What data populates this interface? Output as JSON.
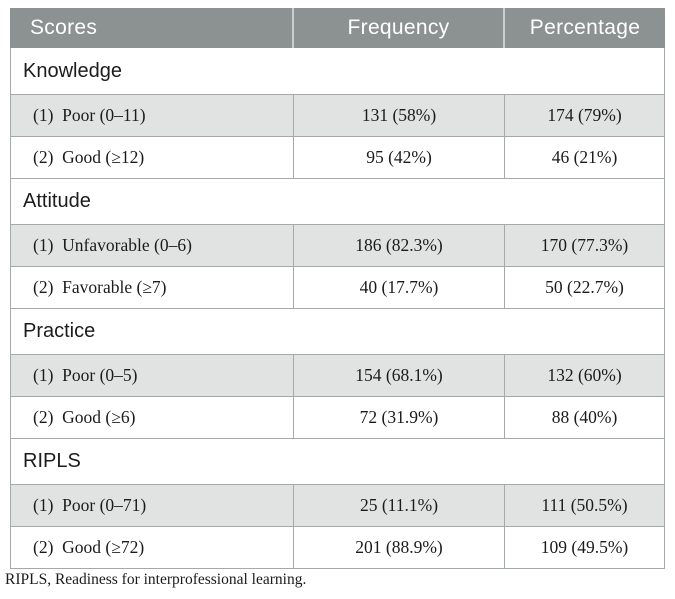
{
  "table": {
    "headers": [
      "Scores",
      "Frequency",
      "Percentage"
    ],
    "sections": [
      {
        "title": "Knowledge",
        "rows": [
          {
            "label": "(1)  Poor (0–11)",
            "frequency": "131 (58%)",
            "percentage": "174 (79%)"
          },
          {
            "label": "(2)  Good (≥12)",
            "frequency": "95 (42%)",
            "percentage": "46 (21%)"
          }
        ]
      },
      {
        "title": "Attitude",
        "rows": [
          {
            "label": "(1)  Unfavorable (0–6)",
            "frequency": "186 (82.3%)",
            "percentage": "170 (77.3%)"
          },
          {
            "label": "(2)  Favorable (≥7)",
            "frequency": "40 (17.7%)",
            "percentage": "50 (22.7%)"
          }
        ]
      },
      {
        "title": "Practice",
        "rows": [
          {
            "label": "(1)  Poor (0–5)",
            "frequency": "154 (68.1%)",
            "percentage": "132 (60%)"
          },
          {
            "label": "(2)  Good (≥6)",
            "frequency": "72 (31.9%)",
            "percentage": "88 (40%)"
          }
        ]
      },
      {
        "title": "RIPLS",
        "rows": [
          {
            "label": "(1)  Poor (0–71)",
            "frequency": "25 (11.1%)",
            "percentage": "111 (50.5%)"
          },
          {
            "label": "(2)  Good (≥72)",
            "frequency": "201 (88.9%)",
            "percentage": "109 (49.5%)"
          }
        ]
      }
    ],
    "footnote": "RIPLS, Readiness for interprofessional learning."
  },
  "colors": {
    "header_bg": "#8c9192",
    "alt_row_bg": "#e1e2e2",
    "border": "#a6a9a9"
  }
}
